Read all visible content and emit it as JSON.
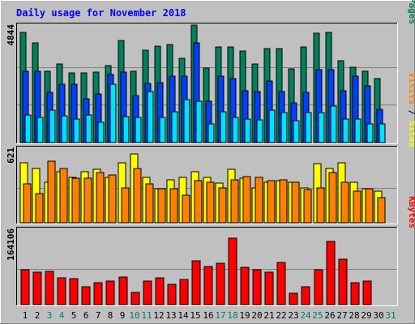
{
  "chart_data": [
    {
      "type": "bar",
      "title": "Daily usage for November 2018",
      "categories": [
        "1",
        "2",
        "3",
        "4",
        "5",
        "6",
        "7",
        "8",
        "9",
        "10",
        "11",
        "12",
        "13",
        "14",
        "15",
        "16",
        "17",
        "18",
        "19",
        "20",
        "21",
        "22",
        "23",
        "24",
        "25",
        "26",
        "27",
        "28",
        "29",
        "30",
        "31"
      ],
      "weekend_categories": [
        "3",
        "4",
        "10",
        "11",
        "17",
        "18",
        "24",
        "25",
        "31"
      ],
      "ylim": [
        0,
        4844
      ],
      "y_tick_label": "4844",
      "right_label": [
        "Pages",
        "Files",
        "Hits"
      ],
      "series": [
        {
          "name": "Hits",
          "color": "#00805c",
          "values": [
            4700,
            4260,
            3040,
            3360,
            2990,
            2990,
            3010,
            3270,
            4350,
            3040,
            3950,
            4130,
            4180,
            3600,
            5010,
            3180,
            4100,
            4090,
            3900,
            3340,
            4000,
            4030,
            3150,
            4080,
            4670,
            4690,
            3500,
            3220,
            3040,
            2730,
            null
          ]
        },
        {
          "name": "Files",
          "color": "#0040ff",
          "values": [
            3060,
            3050,
            2160,
            2500,
            2480,
            1880,
            2070,
            2920,
            3000,
            2000,
            2530,
            2550,
            2840,
            2850,
            4260,
            1750,
            2850,
            2740,
            2230,
            2170,
            2630,
            2170,
            1680,
            2140,
            3130,
            3130,
            2210,
            2840,
            2420,
            1410,
            null
          ]
        },
        {
          "name": "Pages",
          "color": "#00e0ff",
          "values": [
            1160,
            1070,
            1400,
            1150,
            1010,
            1170,
            880,
            2490,
            1100,
            1080,
            2180,
            1080,
            1330,
            1850,
            1760,
            790,
            1310,
            1070,
            1000,
            970,
            1390,
            1280,
            920,
            1290,
            1290,
            1570,
            1000,
            990,
            810,
            780,
            null
          ]
        }
      ]
    },
    {
      "type": "bar",
      "ylim": [
        0,
        621
      ],
      "y_tick_label": "621",
      "right_label": [
        "Sites",
        "Visits"
      ],
      "series": [
        {
          "name": "Visits",
          "color": "#ffff00",
          "values": [
            530,
            480,
            360,
            450,
            400,
            450,
            470,
            400,
            530,
            610,
            400,
            300,
            380,
            400,
            450,
            400,
            350,
            470,
            390,
            310,
            360,
            370,
            360,
            310,
            520,
            480,
            530,
            360,
            300,
            280,
            null
          ]
        },
        {
          "name": "Sites",
          "color": "#ff8000",
          "values": [
            340,
            260,
            540,
            480,
            390,
            390,
            440,
            420,
            310,
            480,
            340,
            300,
            300,
            240,
            370,
            360,
            310,
            380,
            410,
            400,
            370,
            380,
            360,
            290,
            310,
            440,
            360,
            280,
            300,
            220,
            null
          ]
        }
      ]
    },
    {
      "type": "bar",
      "ylim": [
        0,
        164106
      ],
      "y_tick_label": "164106",
      "right_label": [
        "KBytes"
      ],
      "series": [
        {
          "name": "KBytes",
          "color": "#ff0000",
          "values": [
            80000,
            75000,
            77000,
            61000,
            59000,
            41000,
            50000,
            55000,
            64000,
            28000,
            55000,
            61000,
            46000,
            57000,
            101000,
            88000,
            96000,
            152000,
            85000,
            80000,
            75000,
            97000,
            26000,
            41000,
            80000,
            145000,
            105000,
            51000,
            54000,
            null,
            null
          ]
        }
      ]
    }
  ]
}
